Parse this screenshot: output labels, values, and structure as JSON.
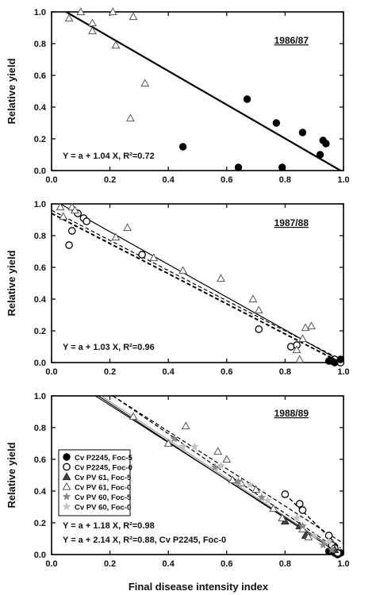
{
  "chart_data": [
    {
      "type": "scatter",
      "panel_label": "1986/87",
      "ylabel": "Relative yield",
      "xlabel": "",
      "xlim": [
        0,
        1.0
      ],
      "ylim": [
        0,
        1.0
      ],
      "x_ticks": [
        "0.0",
        "0.2",
        "0.4",
        "0.6",
        "0.8",
        "1.0"
      ],
      "y_ticks": [
        "0.0",
        "0.2",
        "0.4",
        "0.6",
        "0.8",
        "1.0"
      ],
      "equations": [
        "Y = a + 1.04 X, R²=0.72"
      ],
      "series": [
        {
          "marker": "filled-circle",
          "points": [
            [
              0.45,
              0.15
            ],
            [
              0.64,
              0.02
            ],
            [
              0.67,
              0.45
            ],
            [
              0.77,
              0.3
            ],
            [
              0.79,
              0.02
            ],
            [
              0.86,
              0.24
            ],
            [
              0.92,
              0.1
            ],
            [
              0.93,
              0.19
            ],
            [
              0.94,
              0.17
            ]
          ]
        },
        {
          "marker": "open-triangle",
          "points": [
            [
              0.06,
              0.96
            ],
            [
              0.1,
              1.0
            ],
            [
              0.14,
              0.93
            ],
            [
              0.14,
              0.88
            ],
            [
              0.21,
              1.0
            ],
            [
              0.22,
              0.79
            ],
            [
              0.27,
              0.33
            ],
            [
              0.28,
              0.97
            ],
            [
              0.32,
              0.55
            ]
          ]
        }
      ],
      "lines": [
        {
          "style": "solid",
          "weight": 2.2,
          "x": [
            0.05,
            0.99
          ],
          "y": [
            1.0,
            0.0
          ]
        }
      ]
    },
    {
      "type": "scatter",
      "panel_label": "1987/88",
      "ylabel": "Relative yield",
      "xlabel": "",
      "xlim": [
        0,
        1.0
      ],
      "ylim": [
        0,
        1.0
      ],
      "x_ticks": [
        "0.0",
        "0.2",
        "0.4",
        "0.6",
        "0.8",
        "1.0"
      ],
      "y_ticks": [
        "0.0",
        "0.2",
        "0.4",
        "0.6",
        "0.8",
        "1.0"
      ],
      "equations": [
        "Y = a + 1.03 X, R²=0.96"
      ],
      "series": [
        {
          "marker": "open-circle",
          "points": [
            [
              0.06,
              0.74
            ],
            [
              0.07,
              0.83
            ],
            [
              0.09,
              0.94
            ],
            [
              0.11,
              0.91
            ],
            [
              0.12,
              0.89
            ],
            [
              0.31,
              0.68
            ],
            [
              0.71,
              0.21
            ],
            [
              0.82,
              0.1
            ],
            [
              0.84,
              0.11
            ],
            [
              0.97,
              0.02
            ],
            [
              0.99,
              0.0
            ]
          ]
        },
        {
          "marker": "open-triangle",
          "points": [
            [
              0.03,
              0.98
            ],
            [
              0.04,
              0.92
            ],
            [
              0.07,
              0.98
            ],
            [
              0.08,
              0.96
            ],
            [
              0.22,
              0.79
            ],
            [
              0.26,
              0.85
            ],
            [
              0.35,
              0.66
            ],
            [
              0.45,
              0.58
            ],
            [
              0.58,
              0.53
            ],
            [
              0.69,
              0.4
            ],
            [
              0.71,
              0.33
            ],
            [
              0.86,
              0.15
            ],
            [
              0.87,
              0.22
            ],
            [
              0.89,
              0.23
            ],
            [
              0.84,
              0.08
            ],
            [
              0.85,
              0.02
            ]
          ]
        },
        {
          "marker": "filled-circle",
          "points": [
            [
              0.95,
              0.01
            ],
            [
              0.96,
              0.01
            ],
            [
              0.97,
              0.0
            ],
            [
              0.99,
              0.02
            ]
          ]
        }
      ],
      "lines": [
        {
          "style": "solid",
          "weight": 1.2,
          "x": [
            0.03,
            1.0
          ],
          "y": [
            1.0,
            0.0
          ]
        },
        {
          "style": "dashed",
          "weight": 1.2,
          "x": [
            0.0,
            1.0
          ],
          "y": [
            0.96,
            0.01
          ]
        },
        {
          "style": "dashed",
          "weight": 2.0,
          "x": [
            0.0,
            0.99
          ],
          "y": [
            0.94,
            0.0
          ]
        }
      ]
    },
    {
      "type": "scatter",
      "panel_label": "1988/89",
      "ylabel": "Relative yield",
      "xlabel": "Final disease intensity index",
      "xlim": [
        0,
        1.0
      ],
      "ylim": [
        0,
        1.0
      ],
      "x_ticks": [
        "0.0",
        "0.2",
        "0.4",
        "0.6",
        "0.8",
        "1.0"
      ],
      "y_ticks": [
        "0.0",
        "0.2",
        "0.4",
        "0.6",
        "0.8",
        "1.0"
      ],
      "equations": [
        "Y = a + 1.18 X, R²=0.98",
        "Y = a + 2.14 X, R²=0.88, Cv P2245, Foc-0"
      ],
      "legend": {
        "position": "left-middle",
        "entries": [
          {
            "label": "Cv P2245, Foc-5",
            "marker": "filled-circle"
          },
          {
            "label": "Cv P2245, Foc-0",
            "marker": "open-circle"
          },
          {
            "label": "Cv PV 61, Foc-5",
            "marker": "filled-triangle"
          },
          {
            "label": "Cv PV 61, Foc-0",
            "marker": "open-triangle"
          },
          {
            "label": "Cv PV 60, Foc-5",
            "marker": "star-gray"
          },
          {
            "label": "Cv PV 60, Foc-0",
            "marker": "star-light"
          }
        ]
      },
      "series": [
        {
          "name": "Cv P2245, Foc-5",
          "marker": "filled-circle",
          "points": [
            [
              0.95,
              0.02
            ],
            [
              0.97,
              0.01
            ],
            [
              0.98,
              0.0
            ],
            [
              0.99,
              0.01
            ]
          ]
        },
        {
          "name": "Cv P2245, Foc-0",
          "marker": "open-circle",
          "points": [
            [
              0.8,
              0.38
            ],
            [
              0.85,
              0.32
            ],
            [
              0.86,
              0.28
            ],
            [
              0.95,
              0.12
            ],
            [
              0.96,
              0.06
            ],
            [
              0.97,
              0.04
            ],
            [
              0.98,
              0.01
            ]
          ]
        },
        {
          "name": "Cv PV 61, Foc-5",
          "marker": "filled-triangle",
          "points": [
            [
              0.8,
              0.21
            ],
            [
              0.85,
              0.18
            ],
            [
              0.87,
              0.12
            ],
            [
              0.97,
              0.03
            ]
          ]
        },
        {
          "name": "Cv PV 61, Foc-0",
          "marker": "open-triangle",
          "points": [
            [
              0.28,
              0.87
            ],
            [
              0.4,
              0.7
            ],
            [
              0.46,
              0.81
            ],
            [
              0.57,
              0.65
            ],
            [
              0.6,
              0.6
            ],
            [
              0.62,
              0.47
            ],
            [
              0.65,
              0.45
            ],
            [
              0.7,
              0.41
            ],
            [
              0.76,
              0.29
            ],
            [
              0.79,
              0.23
            ],
            [
              0.86,
              0.16
            ],
            [
              0.88,
              0.11
            ]
          ]
        },
        {
          "name": "Cv PV 60, Foc-5",
          "marker": "star-gray",
          "points": [
            [
              0.42,
              0.73
            ],
            [
              0.56,
              0.55
            ],
            [
              0.64,
              0.46
            ],
            [
              0.72,
              0.36
            ],
            [
              0.86,
              0.18
            ],
            [
              0.93,
              0.06
            ],
            [
              0.96,
              0.03
            ]
          ]
        },
        {
          "name": "Cv PV 60, Foc-0",
          "marker": "star-light",
          "points": [
            [
              0.45,
              0.68
            ],
            [
              0.49,
              0.68
            ],
            [
              0.58,
              0.56
            ],
            [
              0.68,
              0.44
            ],
            [
              0.74,
              0.34
            ],
            [
              0.84,
              0.23
            ],
            [
              0.9,
              0.12
            ],
            [
              0.95,
              0.08
            ]
          ]
        }
      ],
      "lines": [
        {
          "style": "solid",
          "weight": 1.1,
          "x": [
            0.15,
            1.0
          ],
          "y": [
            1.0,
            0.0
          ]
        },
        {
          "style": "solid",
          "weight": 1.1,
          "x": [
            0.16,
            0.99
          ],
          "y": [
            1.0,
            0.0
          ]
        },
        {
          "style": "solid",
          "weight": 1.1,
          "color": "#9a9a9a",
          "x": [
            0.17,
            1.0
          ],
          "y": [
            1.0,
            0.0
          ]
        },
        {
          "style": "dashed",
          "weight": 1.2,
          "x": [
            0.21,
            1.0
          ],
          "y": [
            1.0,
            0.07
          ]
        },
        {
          "style": "dashed",
          "weight": 1.2,
          "x": [
            0.21,
            0.99
          ],
          "y": [
            1.0,
            0.02
          ]
        },
        {
          "style": "dashed",
          "weight": 1.4,
          "x": [
            0.8,
            0.99
          ],
          "y": [
            0.38,
            0.04
          ]
        }
      ]
    }
  ]
}
